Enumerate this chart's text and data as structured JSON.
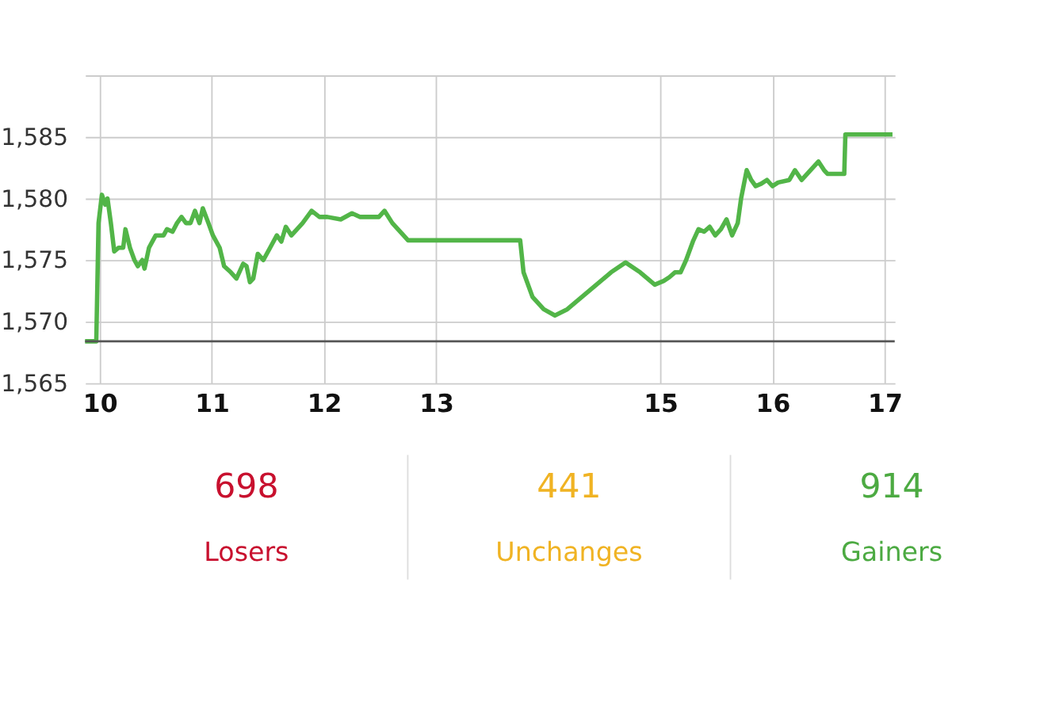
{
  "chart_data": [
    {
      "type": "line",
      "x": [
        9.87,
        9.97,
        9.99,
        10.02,
        10.05,
        10.07,
        10.1,
        10.13,
        10.17,
        10.21,
        10.23,
        10.27,
        10.31,
        10.34,
        10.38,
        10.4,
        10.44,
        10.47,
        10.5,
        10.57,
        10.6,
        10.65,
        10.69,
        10.73,
        10.77,
        10.81,
        10.85,
        10.89,
        10.92,
        10.97,
        11.01,
        11.07,
        11.11,
        11.17,
        11.22,
        11.28,
        11.31,
        11.34,
        11.37,
        11.41,
        11.46,
        11.52,
        11.58,
        11.62,
        11.66,
        11.71,
        11.76,
        11.81,
        11.89,
        11.96,
        12.03,
        12.15,
        12.25,
        12.32,
        12.49,
        12.54,
        12.61,
        12.66,
        12.75,
        13.75,
        13.78,
        13.86,
        13.96,
        14.06,
        14.17,
        14.3,
        14.43,
        14.56,
        14.69,
        14.82,
        14.95,
        15.03,
        15.08,
        15.13,
        15.18,
        15.23,
        15.29,
        15.34,
        15.39,
        15.44,
        15.49,
        15.54,
        15.59,
        15.64,
        15.69,
        15.72,
        15.77,
        15.81,
        15.85,
        15.9,
        15.95,
        16.0,
        16.05,
        16.15,
        16.2,
        16.26,
        16.31,
        16.36,
        16.41,
        16.46,
        16.49,
        16.64,
        16.65,
        17.07
      ],
      "series": [
        {
          "color": "#52b548",
          "values": [
            1568.4,
            1568.4,
            1578,
            1580.3,
            1579.5,
            1580,
            1578,
            1575.7,
            1576,
            1576,
            1577.5,
            1576,
            1575,
            1574.5,
            1575,
            1574.3,
            1576,
            1576.5,
            1577,
            1577,
            1577.5,
            1577.3,
            1578,
            1578.5,
            1578,
            1578,
            1579,
            1578,
            1579.2,
            1578,
            1577,
            1576,
            1574.5,
            1574,
            1573.5,
            1574.7,
            1574.5,
            1573.2,
            1573.5,
            1575.5,
            1575,
            1576,
            1577,
            1576.5,
            1577.7,
            1577,
            1577.5,
            1578,
            1579,
            1578.5,
            1578.5,
            1578.3,
            1578.8,
            1578.5,
            1578.5,
            1579,
            1578,
            1577.5,
            1576.6,
            1576.6,
            1574,
            1572,
            1571,
            1570.5,
            1571,
            1572,
            1573,
            1574,
            1574.8,
            1574,
            1573,
            1573.3,
            1573.6,
            1574,
            1574,
            1575,
            1576.5,
            1577.5,
            1577.3,
            1577.7,
            1577,
            1577.5,
            1578.3,
            1577,
            1578,
            1580,
            1582.3,
            1581.5,
            1581,
            1581.2,
            1581.5,
            1581,
            1581.3,
            1581.5,
            1582.3,
            1581.5,
            1582,
            1582.5,
            1583,
            1582.3,
            1582,
            1582,
            1585.2,
            1585.2
          ]
        }
      ],
      "xlim": [
        9.87,
        17.09
      ],
      "xticks": [
        10,
        11,
        12,
        13,
        15,
        16,
        17
      ],
      "ylim": [
        1565,
        1590
      ],
      "yticks": [
        {
          "value": 1565,
          "label": "1,565"
        },
        {
          "value": 1570,
          "label": "1,570"
        },
        {
          "value": 1575,
          "label": "1,575"
        },
        {
          "value": 1580,
          "label": "1,580"
        },
        {
          "value": 1585,
          "label": "1,585"
        },
        {
          "value": 1590,
          "label": null
        }
      ],
      "ref_lines": [
        {
          "axis": "y",
          "value": 1568.4,
          "color": "#555555"
        }
      ],
      "grid": true,
      "legend": false,
      "marker": "none",
      "line_style": "solid"
    },
    {
      "type": "other",
      "categories": [
        "Losers",
        "Unchanges",
        "Gainers"
      ],
      "values": [
        698,
        441,
        914
      ],
      "colors": [
        "#c8102e",
        "#f0b323",
        "#4caa42"
      ],
      "data_labels": true
    }
  ]
}
